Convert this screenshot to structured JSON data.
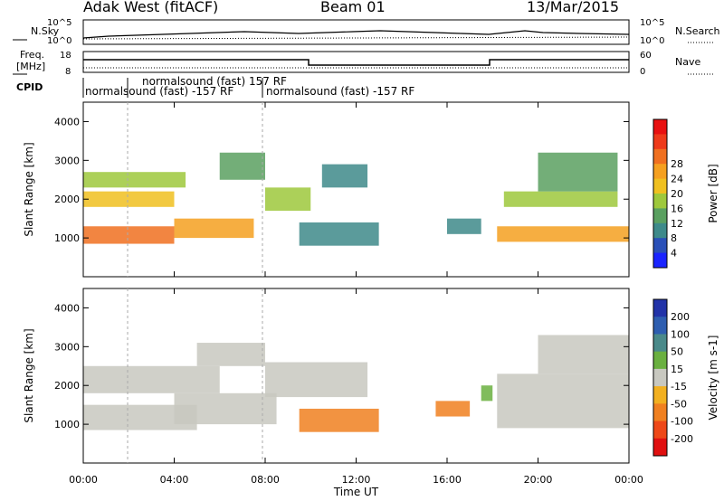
{
  "header": {
    "station": "Adak West (fitACF)",
    "beam": "Beam 01",
    "date": "13/Mar/2015"
  },
  "sky_panel": {
    "left_label": "N.Sky",
    "right_label": "N.Search",
    "left_ticks": [
      "10^5",
      "10^0"
    ],
    "right_ticks": [
      "10^5",
      "10^0"
    ]
  },
  "freq_panel": {
    "left_label_line1": "Freq.",
    "left_label_line2": "[MHz]",
    "right_label": "Nave",
    "left_ticks": [
      "18",
      "8"
    ],
    "right_ticks": [
      "60",
      "0"
    ]
  },
  "cpid": {
    "label": "CPID",
    "entries": [
      "normalsound (fast) -157 RF",
      "normalsound (fast) 157 RF",
      "normalsound (fast) -157 RF"
    ]
  },
  "chart_data": [
    {
      "type": "heatmap",
      "panel": "power",
      "ylabel": "Slant Range [km]",
      "yticks": [
        "1000",
        "2000",
        "3000",
        "4000"
      ],
      "ylim": [
        0,
        4500
      ],
      "x": [
        "00:00",
        "04:00",
        "08:00",
        "12:00",
        "16:00",
        "20:00",
        "00:00"
      ],
      "colorbar": {
        "label": "Power [dB]",
        "ticks": [
          "4",
          "8",
          "12",
          "16",
          "20",
          "24",
          "28"
        ],
        "colors": [
          "#1a24ff",
          "#2a50b8",
          "#3e8a8a",
          "#5aa060",
          "#9ec83c",
          "#f0c020",
          "#f5a020",
          "#f07020",
          "#ee3a1a",
          "#e81010"
        ]
      },
      "bands": [
        {
          "t": [
            0.0,
            4.0
          ],
          "range": [
            850,
            1300
          ],
          "level": "28"
        },
        {
          "t": [
            4.0,
            7.5
          ],
          "range": [
            1000,
            1500
          ],
          "level": "24"
        },
        {
          "t": [
            0.0,
            4.0
          ],
          "range": [
            1800,
            2200
          ],
          "level": "20"
        },
        {
          "t": [
            0.0,
            4.5
          ],
          "range": [
            2300,
            2700
          ],
          "level": "16"
        },
        {
          "t": [
            6.0,
            8.0
          ],
          "range": [
            2500,
            3200
          ],
          "level": "12"
        },
        {
          "t": [
            8.0,
            10.0
          ],
          "range": [
            1700,
            2300
          ],
          "level": "16"
        },
        {
          "t": [
            9.5,
            13.0
          ],
          "range": [
            800,
            1400
          ],
          "level": "8"
        },
        {
          "t": [
            10.5,
            12.5
          ],
          "range": [
            2300,
            2900
          ],
          "level": "8"
        },
        {
          "t": [
            16.0,
            17.5
          ],
          "range": [
            1100,
            1500
          ],
          "level": "8"
        },
        {
          "t": [
            18.2,
            24.0
          ],
          "range": [
            900,
            1300
          ],
          "level": "24"
        },
        {
          "t": [
            18.5,
            23.5
          ],
          "range": [
            1800,
            2200
          ],
          "level": "16"
        },
        {
          "t": [
            20.0,
            23.5
          ],
          "range": [
            2200,
            3200
          ],
          "level": "12"
        }
      ]
    },
    {
      "type": "heatmap",
      "panel": "velocity",
      "ylabel": "Slant Range [km]",
      "yticks": [
        "1000",
        "2000",
        "3000",
        "4000"
      ],
      "ylim": [
        0,
        4500
      ],
      "x": [
        "00:00",
        "04:00",
        "08:00",
        "12:00",
        "16:00",
        "20:00",
        "00:00"
      ],
      "xlabel": "Time UT",
      "colorbar": {
        "label": "Velocity [m s-1]",
        "ticks": [
          "200",
          "100",
          "50",
          "15",
          "-15",
          "-50",
          "-100",
          "-200"
        ],
        "colors": [
          "#2233a8",
          "#2e5eb0",
          "#4a8a8a",
          "#6ab040",
          "#c8c8c0",
          "#f2b020",
          "#f08020",
          "#ee4818",
          "#e01010"
        ]
      },
      "bands": [
        {
          "t": [
            0.0,
            5.0
          ],
          "range": [
            850,
            1500
          ],
          "level": "15"
        },
        {
          "t": [
            0.0,
            6.0
          ],
          "range": [
            1800,
            2500
          ],
          "level": "15"
        },
        {
          "t": [
            4.0,
            8.5
          ],
          "range": [
            1000,
            1800
          ],
          "level": "15"
        },
        {
          "t": [
            5.0,
            8.0
          ],
          "range": [
            2500,
            3100
          ],
          "level": "15"
        },
        {
          "t": [
            8.0,
            12.5
          ],
          "range": [
            1700,
            2600
          ],
          "level": "15"
        },
        {
          "t": [
            9.5,
            13.0
          ],
          "range": [
            800,
            1400
          ],
          "level": "-50"
        },
        {
          "t": [
            15.5,
            17.0
          ],
          "range": [
            1200,
            1600
          ],
          "level": "-50"
        },
        {
          "t": [
            18.2,
            24.0
          ],
          "range": [
            900,
            2300
          ],
          "level": "15"
        },
        {
          "t": [
            20.0,
            24.0
          ],
          "range": [
            2300,
            3300
          ],
          "level": "15"
        },
        {
          "t": [
            17.5,
            18.0
          ],
          "range": [
            1600,
            2000
          ],
          "level": "50"
        }
      ]
    }
  ]
}
